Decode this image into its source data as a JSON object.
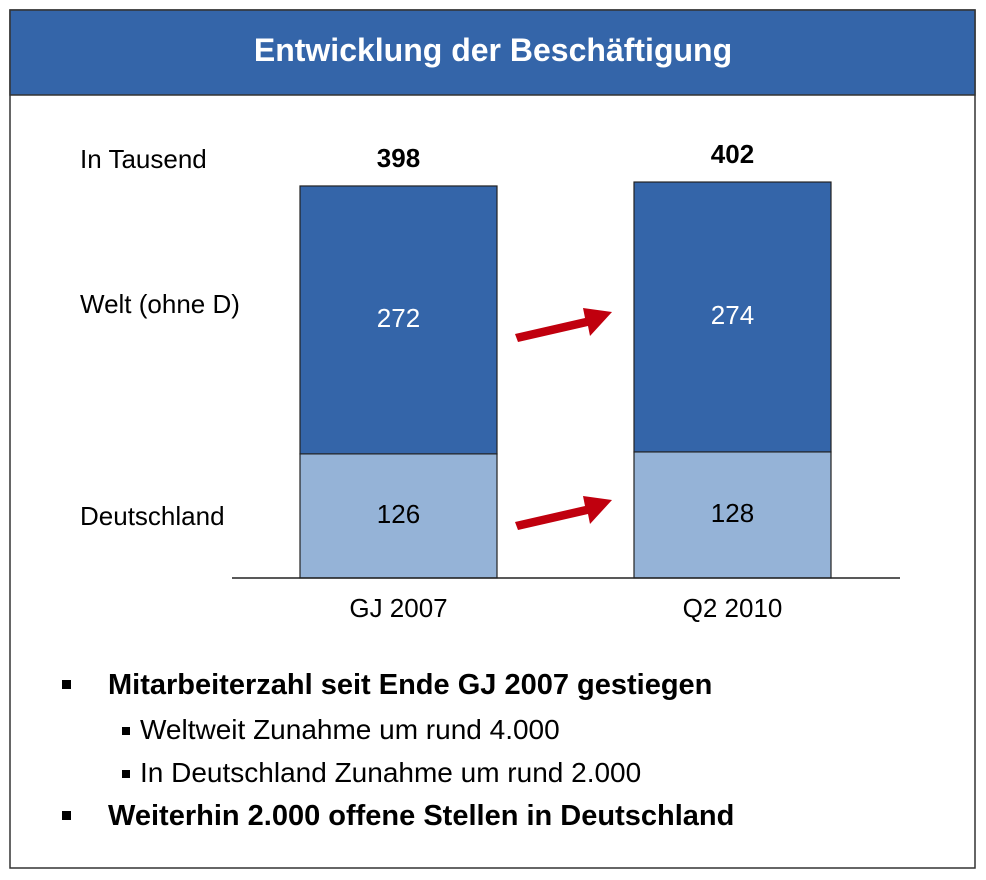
{
  "chart_data": {
    "type": "stacked_bar",
    "title": "Entwicklung der Beschäftigung",
    "unit_label": "In Tausend",
    "categories": [
      "GJ 2007",
      "Q2 2010"
    ],
    "series": [
      {
        "name": "Deutschland",
        "color": "#95b3d7",
        "values": [
          126,
          128
        ]
      },
      {
        "name": "Welt (ohne D)",
        "color": "#3465a9",
        "values": [
          272,
          274
        ]
      }
    ],
    "totals": [
      398,
      402
    ],
    "ylim": [
      0,
      400
    ],
    "bullets": [
      {
        "text": "Mitarbeiterzahl seit Ende GJ 2007 gestiegen",
        "sub": [
          "Weltweit Zunahme um rund 4.000",
          "In Deutschland Zunahme um rund 2.000"
        ]
      },
      {
        "text": "Weiterhin 2.000 offene Stellen in Deutschland",
        "sub": []
      }
    ]
  }
}
